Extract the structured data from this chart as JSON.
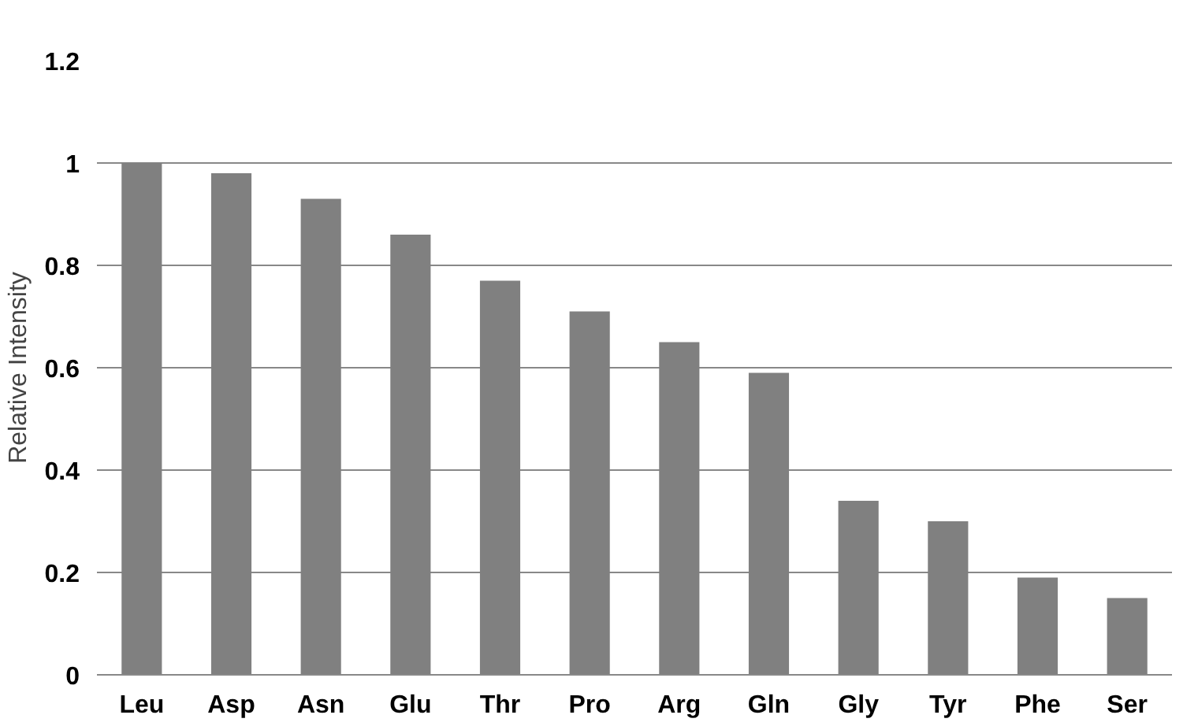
{
  "chart_data": {
    "type": "bar",
    "ylabel": "Relative Intensity",
    "categories": [
      "Leu",
      "Asp",
      "Asn",
      "Glu",
      "Thr",
      "Pro",
      "Arg",
      "Gln",
      "Gly",
      "Tyr",
      "Phe",
      "Ser"
    ],
    "values": [
      1.0,
      0.98,
      0.93,
      0.86,
      0.77,
      0.71,
      0.65,
      0.59,
      0.34,
      0.3,
      0.19,
      0.15
    ],
    "color": "#808080",
    "ylim": [
      0,
      1.2
    ],
    "yticks": [
      {
        "value": 0,
        "label": "0"
      },
      0.2,
      0.4,
      0.6,
      0.8,
      {
        "value": 1,
        "label": "1"
      },
      1.2
    ],
    "grid": "y"
  }
}
